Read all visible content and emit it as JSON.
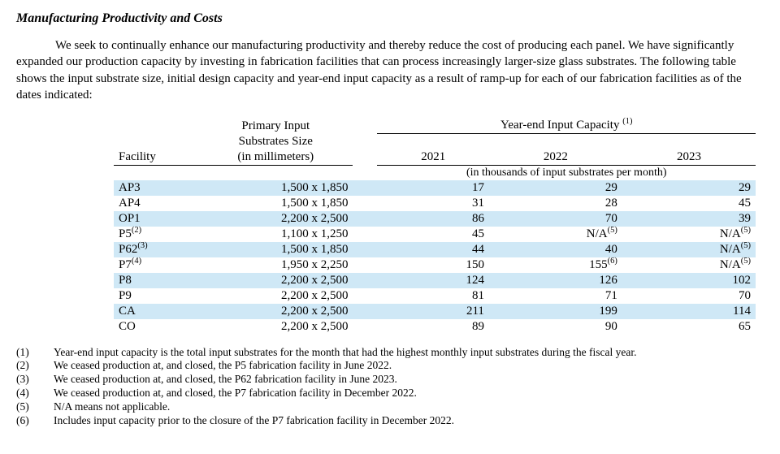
{
  "section_title": "Manufacturing Productivity and Costs",
  "body_para": "We seek to continually enhance our manufacturing productivity and thereby reduce the cost of producing each panel. We have significantly expanded our production capacity by investing in fabrication facilities that can process increasingly larger-size glass substrates. The following table shows the input substrate size, initial design capacity and year-end input capacity as a result of ramp-up for each of our fabrication facilities as of the dates indicated:",
  "table": {
    "hdr_primary_line1": "Primary Input",
    "hdr_primary_line2": "Substrates Size",
    "hdr_primary_line3": "(in millimeters)",
    "hdr_yearend": "Year-end Input Capacity",
    "hdr_yearend_sup": "(1)",
    "hdr_facility": "Facility",
    "years": [
      "2021",
      "2022",
      "2023"
    ],
    "unit_note": "(in thousands of input substrates per month)",
    "rows": [
      {
        "fac": "AP3",
        "fac_sup": "",
        "size": "1,500 x 1,850",
        "v": [
          "17",
          "29",
          "29"
        ],
        "sup": [
          "",
          "",
          ""
        ]
      },
      {
        "fac": "AP4",
        "fac_sup": "",
        "size": "1,500 x 1,850",
        "v": [
          "31",
          "28",
          "45"
        ],
        "sup": [
          "",
          "",
          ""
        ]
      },
      {
        "fac": "OP1",
        "fac_sup": "",
        "size": "2,200 x 2,500",
        "v": [
          "86",
          "70",
          "39"
        ],
        "sup": [
          "",
          "",
          ""
        ]
      },
      {
        "fac": "P5",
        "fac_sup": "(2)",
        "size": "1,100 x 1,250",
        "v": [
          "45",
          "N/A",
          "N/A"
        ],
        "sup": [
          "",
          "(5)",
          "(5)"
        ]
      },
      {
        "fac": "P62",
        "fac_sup": "(3)",
        "size": "1,500 x 1,850",
        "v": [
          "44",
          "40",
          "N/A"
        ],
        "sup": [
          "",
          "",
          "(5)"
        ]
      },
      {
        "fac": "P7",
        "fac_sup": "(4)",
        "size": "1,950 x 2,250",
        "v": [
          "150",
          "155",
          "N/A"
        ],
        "sup": [
          "",
          "(6)",
          "(5)"
        ]
      },
      {
        "fac": "P8",
        "fac_sup": "",
        "size": "2,200 x 2,500",
        "v": [
          "124",
          "126",
          "102"
        ],
        "sup": [
          "",
          "",
          ""
        ]
      },
      {
        "fac": "P9",
        "fac_sup": "",
        "size": "2,200 x 2,500",
        "v": [
          "81",
          "71",
          "70"
        ],
        "sup": [
          "",
          "",
          ""
        ]
      },
      {
        "fac": "CA",
        "fac_sup": "",
        "size": "2,200 x 2,500",
        "v": [
          "211",
          "199",
          "114"
        ],
        "sup": [
          "",
          "",
          ""
        ]
      },
      {
        "fac": "CO",
        "fac_sup": "",
        "size": "2,200 x 2,500",
        "v": [
          "89",
          "90",
          "65"
        ],
        "sup": [
          "",
          "",
          ""
        ]
      }
    ],
    "band_color": "#cfe8f6"
  },
  "footnotes": [
    {
      "mark": "(1)",
      "text": "Year-end input capacity is the total input substrates for the month that had the highest monthly input substrates during the fiscal year."
    },
    {
      "mark": "(2)",
      "text": "We ceased production at, and closed, the P5 fabrication facility in June 2022."
    },
    {
      "mark": "(3)",
      "text": "We ceased production at, and closed, the P62 fabrication facility in June 2023."
    },
    {
      "mark": "(4)",
      "text": "We ceased production at, and closed, the P7 fabrication facility in December 2022."
    },
    {
      "mark": "(5)",
      "text": "N/A means not applicable."
    },
    {
      "mark": "(6)",
      "text": "Includes input capacity prior to the closure of the P7 fabrication facility in December 2022."
    }
  ]
}
